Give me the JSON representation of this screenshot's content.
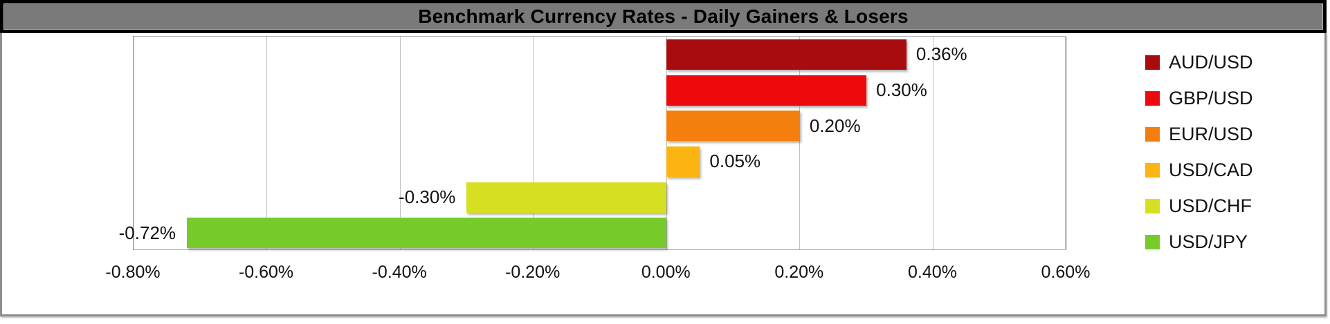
{
  "title": "Benchmark Currency Rates - Daily Gainers & Losers",
  "chart_data": {
    "type": "bar",
    "orientation": "horizontal",
    "title": "Benchmark Currency Rates - Daily Gainers & Losers",
    "categories": [
      "AUD/USD",
      "GBP/USD",
      "EUR/USD",
      "USD/CAD",
      "USD/CHF",
      "USD/JPY"
    ],
    "values": [
      0.36,
      0.3,
      0.2,
      0.05,
      -0.3,
      -0.72
    ],
    "value_labels": [
      "0.36%",
      "0.30%",
      "0.20%",
      "0.05%",
      "-0.30%",
      "-0.72%"
    ],
    "bar_colors": [
      "#A90C0E",
      "#EE0A0C",
      "#F57F0E",
      "#FBB412",
      "#D6E021",
      "#76CB2A"
    ],
    "xlim": [
      -0.8,
      0.6
    ],
    "x_tick_interval": 0.2,
    "x_tick_labels": [
      "-0.80%",
      "-0.60%",
      "-0.40%",
      "-0.20%",
      "0.00%",
      "0.20%",
      "0.40%",
      "0.60%"
    ],
    "grid": true,
    "legend_position": "right",
    "legend_entries": [
      "AUD/USD",
      "GBP/USD",
      "EUR/USD",
      "USD/CAD",
      "USD/CHF",
      "USD/JPY"
    ]
  },
  "colors": {
    "title_background": "#7A7A7A",
    "title_text": "#000000",
    "title_border": "#000000",
    "frame_border": "#8E8E8E",
    "plot_border": "#A6A6A6",
    "gridline": "#BFBFBF",
    "background": "#FFFFFF",
    "label_text": "#111111"
  }
}
